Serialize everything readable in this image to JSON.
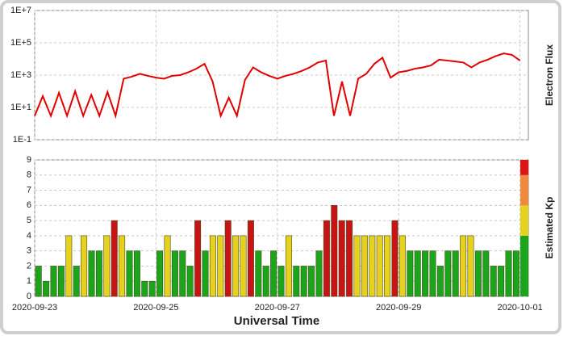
{
  "chart_data": [
    {
      "type": "line",
      "axis_title": "Electron Flux",
      "log_scale": true,
      "grid": true,
      "color": "#e00000",
      "ylim": [
        0.1,
        10000000
      ],
      "yticks": [
        {
          "value": 0.1,
          "label": "1E-1"
        },
        {
          "value": 10,
          "label": "1E+1"
        },
        {
          "value": 1000,
          "label": "1E+3"
        },
        {
          "value": 100000,
          "label": "1E+5"
        },
        {
          "value": 10000000,
          "label": "1E+7"
        }
      ],
      "values": [
        3,
        50,
        3,
        80,
        3,
        100,
        3,
        60,
        3,
        90,
        3,
        600,
        800,
        1200,
        900,
        700,
        600,
        900,
        1000,
        1500,
        2500,
        5000,
        400,
        3,
        40,
        3,
        500,
        3000,
        1500,
        900,
        600,
        900,
        1200,
        1800,
        3000,
        6000,
        8000,
        3,
        400,
        3,
        600,
        1200,
        5000,
        12000,
        700,
        1500,
        1800,
        2500,
        3000,
        4000,
        9000,
        8000,
        7000,
        6000,
        3000,
        6000,
        9000,
        15000,
        22000,
        18000,
        8000
      ]
    },
    {
      "type": "bar",
      "axis_title": "Estimated Kp",
      "x_axis_title": "Universal Time",
      "grid": true,
      "ylim": [
        0,
        9
      ],
      "yticks": [
        0,
        1,
        2,
        3,
        4,
        5,
        6,
        7,
        8,
        9
      ],
      "xticks": [
        {
          "value": 0,
          "label": "2020-09-23"
        },
        {
          "value": 16,
          "label": "2020-09-25"
        },
        {
          "value": 32,
          "label": "2020-09-27"
        },
        {
          "value": 48,
          "label": "2020-09-29"
        },
        {
          "value": 64,
          "label": "2020-10-01"
        }
      ],
      "bar_colors": [
        {
          "min": 0,
          "color": "#1aa51a"
        },
        {
          "min": 4,
          "color": "#e6d21e"
        },
        {
          "min": 5,
          "color": "#c81414"
        }
      ],
      "scale_colors": [
        {
          "from": 0,
          "to": 4,
          "color": "#1aa51a"
        },
        {
          "from": 4,
          "to": 6,
          "color": "#e6d21e"
        },
        {
          "from": 6,
          "to": 8,
          "color": "#f08a3c"
        },
        {
          "from": 8,
          "to": 9,
          "color": "#e01414"
        }
      ],
      "values": [
        2,
        1,
        2,
        2,
        4,
        2,
        4,
        3,
        3,
        4,
        5,
        4,
        3,
        3,
        1,
        1,
        3,
        4,
        3,
        3,
        2,
        5,
        3,
        4,
        4,
        5,
        4,
        4,
        5,
        3,
        2,
        3,
        2,
        4,
        2,
        2,
        2,
        3,
        5,
        6,
        5,
        5,
        4,
        4,
        4,
        4,
        4,
        5,
        4,
        3,
        3,
        3,
        3,
        2,
        3,
        3,
        4,
        4,
        3,
        3,
        2,
        2,
        3,
        3
      ]
    }
  ]
}
